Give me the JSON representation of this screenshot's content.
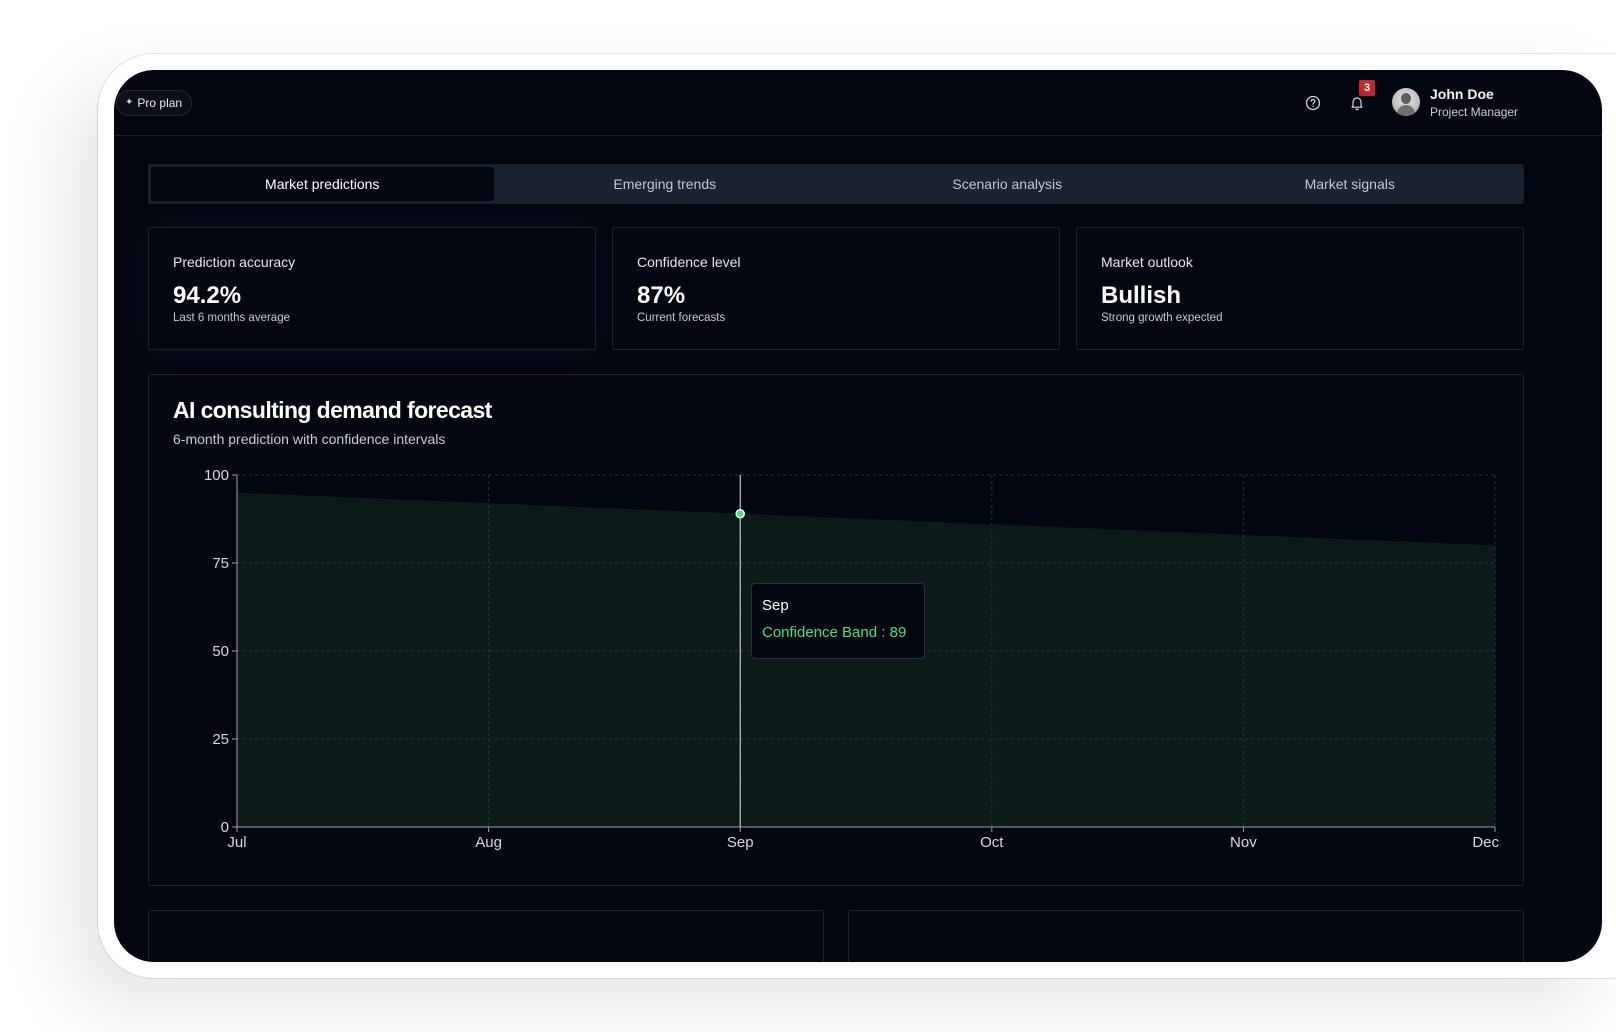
{
  "header": {
    "plan_label": "Pro plan",
    "notifications_count": "3",
    "user": {
      "name": "John Doe",
      "role": "Project Manager"
    },
    "icons": [
      "sparkle-icon",
      "help-circle-icon",
      "bell-icon",
      "avatar"
    ]
  },
  "tabs": [
    {
      "label": "Market predictions",
      "active": true
    },
    {
      "label": "Emerging trends",
      "active": false
    },
    {
      "label": "Scenario analysis",
      "active": false
    },
    {
      "label": "Market signals",
      "active": false
    }
  ],
  "stats": [
    {
      "label": "Prediction accuracy",
      "value": "94.2%",
      "sub": "Last 6 months average"
    },
    {
      "label": "Confidence level",
      "value": "87%",
      "sub": "Current forecasts"
    },
    {
      "label": "Market outlook",
      "value": "Bullish",
      "sub": "Strong growth expected"
    }
  ],
  "forecast": {
    "title": "AI consulting demand forecast",
    "subtitle": "6-month prediction with confidence intervals",
    "tooltip": {
      "title": "Sep",
      "series": "Confidence Band",
      "value": "89"
    }
  },
  "chart_data": {
    "type": "area",
    "categories": [
      "Jul",
      "Aug",
      "Sep",
      "Oct",
      "Nov",
      "Dec"
    ],
    "series": [
      {
        "name": "Confidence Band",
        "values": [
          95,
          92,
          89,
          86,
          83,
          80
        ]
      }
    ],
    "ylim": [
      0,
      100
    ],
    "yticks": [
      0,
      25,
      50,
      75,
      100
    ],
    "grid": true,
    "hovered_category": "Sep",
    "colors": {
      "fill": "#0d1a1a",
      "accent": "#4ade80",
      "grid": "#2a313c"
    }
  }
}
